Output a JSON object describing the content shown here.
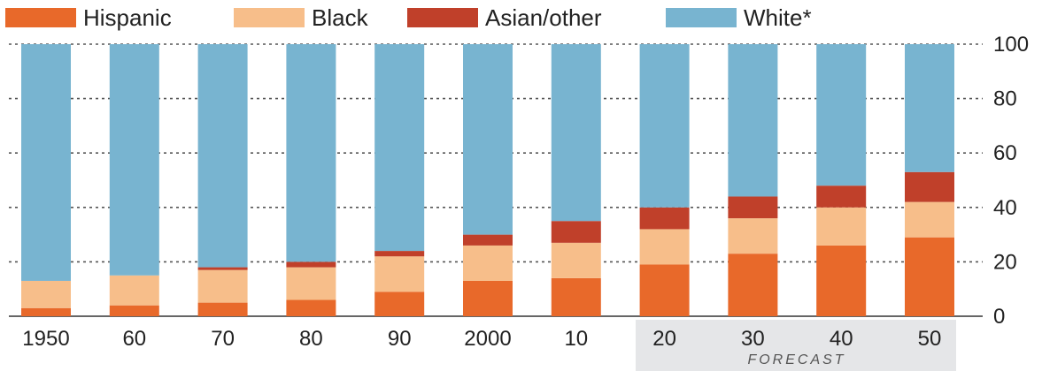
{
  "chart_data": {
    "type": "bar",
    "stacked": true,
    "categories": [
      "1950",
      "60",
      "70",
      "80",
      "90",
      "2000",
      "10",
      "20",
      "30",
      "40",
      "50"
    ],
    "series": [
      {
        "name": "Hispanic",
        "color": "#e8692a",
        "values": [
          3,
          4,
          5,
          6,
          9,
          13,
          14,
          19,
          23,
          26,
          29
        ]
      },
      {
        "name": "Black",
        "color": "#f7be8a",
        "values": [
          10,
          11,
          12,
          12,
          13,
          13,
          13,
          13,
          13,
          14,
          13
        ]
      },
      {
        "name": "Asian/other",
        "color": "#c0402a",
        "values": [
          0,
          0,
          1,
          2,
          2,
          4,
          8,
          8,
          8,
          8,
          11
        ]
      },
      {
        "name": "White*",
        "color": "#78b4d0",
        "values": [
          87,
          85,
          82,
          80,
          76,
          70,
          65,
          60,
          56,
          52,
          47
        ]
      }
    ],
    "ylim": [
      0,
      100
    ],
    "yticks": [
      "0",
      "20",
      "40",
      "60",
      "80",
      "100"
    ],
    "grid": true,
    "legend_position": "top",
    "annotation": {
      "text": "FORECAST",
      "applies_to": [
        "20",
        "30",
        "40",
        "50"
      ]
    }
  }
}
